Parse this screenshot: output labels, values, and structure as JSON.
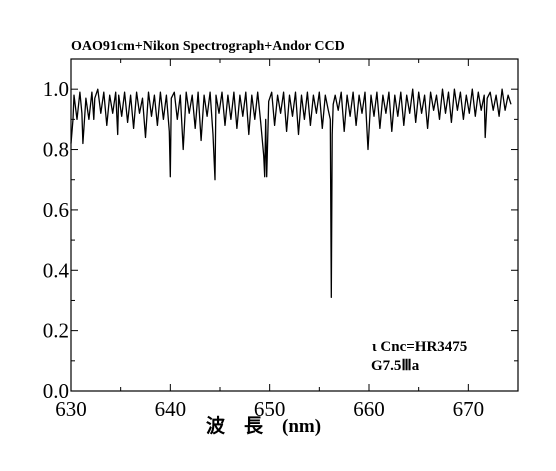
{
  "chart_data": {
    "type": "line",
    "title": "OAO91cm+Nikon Spectrograph+Andor CCD",
    "xlabel": "波　長　(nm)",
    "ylabel": "",
    "xlim": [
      630,
      675
    ],
    "ylim": [
      0.0,
      1.1
    ],
    "xticks": [
      "630",
      "640",
      "650",
      "660",
      "670"
    ],
    "yticks": [
      "0.0",
      "0.2",
      "0.4",
      "0.6",
      "0.8",
      "1.0"
    ],
    "grid": false,
    "legend": "none",
    "annotations": [
      "ι Cnc=HR3475",
      "G7.5Ⅲa"
    ],
    "series": [
      {
        "x": [
          630.0,
          630.2,
          630.3,
          630.6,
          630.9,
          631.1,
          631.2,
          631.5,
          631.8,
          632.1,
          632.3,
          632.4,
          632.7,
          633.0,
          633.3,
          633.6,
          633.9,
          634.2,
          634.5,
          634.7,
          634.8,
          635.1,
          635.4,
          635.7,
          636.0,
          636.3,
          636.6,
          636.9,
          637.2,
          637.5,
          637.8,
          638.1,
          638.4,
          638.7,
          639.0,
          639.3,
          639.6,
          639.9,
          640.0,
          640.1,
          640.4,
          640.7,
          641.0,
          641.3,
          641.6,
          641.9,
          642.2,
          642.5,
          642.8,
          643.1,
          643.4,
          643.7,
          644.0,
          644.3,
          644.5,
          644.6,
          644.9,
          645.2,
          645.5,
          645.8,
          646.1,
          646.4,
          646.7,
          647.0,
          647.3,
          647.6,
          647.9,
          648.2,
          648.5,
          648.8,
          649.1,
          649.4,
          649.5,
          649.6,
          649.7,
          649.9,
          650.2,
          650.5,
          650.8,
          651.1,
          651.4,
          651.7,
          652.0,
          652.3,
          652.6,
          652.9,
          653.2,
          653.5,
          653.8,
          654.1,
          654.4,
          654.7,
          655.0,
          655.3,
          655.6,
          655.9,
          656.1,
          656.2,
          656.3,
          656.4,
          656.6,
          656.9,
          657.2,
          657.5,
          657.8,
          658.1,
          658.4,
          658.7,
          659.0,
          659.3,
          659.6,
          659.9,
          660.2,
          660.5,
          660.8,
          661.1,
          661.4,
          661.7,
          662.0,
          662.3,
          662.6,
          662.9,
          663.2,
          663.5,
          663.8,
          664.1,
          664.4,
          664.7,
          665.0,
          665.3,
          665.6,
          665.9,
          666.2,
          666.5,
          666.8,
          667.1,
          667.4,
          667.7,
          668.0,
          668.3,
          668.6,
          668.9,
          669.2,
          669.5,
          669.8,
          670.1,
          670.4,
          670.7,
          671.0,
          671.3,
          671.6,
          671.7,
          671.9,
          672.2,
          672.5,
          672.8,
          673.1,
          673.4,
          673.7,
          674.0,
          674.3
        ],
        "y": [
          0.82,
          0.9,
          0.98,
          0.9,
          0.99,
          0.92,
          0.82,
          0.97,
          0.9,
          0.99,
          0.9,
          0.97,
          1.0,
          0.92,
          0.99,
          0.88,
          0.98,
          0.92,
          0.99,
          0.85,
          0.98,
          0.91,
          0.99,
          0.89,
          0.98,
          0.87,
          0.99,
          0.92,
          0.97,
          0.84,
          0.99,
          0.91,
          0.98,
          0.88,
          0.99,
          0.9,
          0.98,
          0.86,
          0.71,
          0.97,
          0.99,
          0.9,
          0.98,
          0.8,
          0.99,
          0.92,
          0.98,
          0.87,
          0.99,
          0.83,
          0.98,
          0.91,
          0.99,
          0.85,
          0.7,
          0.98,
          0.92,
          0.99,
          0.88,
          0.98,
          0.9,
          0.99,
          0.87,
          0.98,
          0.91,
          0.99,
          0.85,
          0.98,
          0.9,
          0.99,
          0.89,
          0.78,
          0.71,
          0.9,
          0.71,
          0.96,
          0.99,
          0.88,
          0.98,
          0.92,
          0.99,
          0.86,
          0.98,
          0.91,
          0.99,
          0.85,
          0.98,
          0.9,
          0.99,
          0.88,
          0.98,
          0.92,
          0.99,
          0.87,
          0.98,
          0.93,
          0.9,
          0.31,
          0.85,
          0.95,
          0.98,
          0.93,
          0.99,
          0.86,
          0.98,
          0.91,
          0.99,
          0.88,
          0.98,
          0.92,
          0.99,
          0.8,
          0.98,
          0.91,
          0.99,
          0.87,
          0.98,
          0.92,
          0.99,
          0.86,
          0.98,
          0.91,
          0.99,
          0.88,
          0.98,
          0.92,
          1.0,
          0.89,
          0.99,
          0.92,
          0.98,
          0.87,
          0.99,
          0.93,
          0.98,
          0.9,
          1.0,
          0.92,
          0.99,
          0.89,
          1.0,
          0.93,
          0.99,
          0.9,
          0.98,
          0.92,
          1.0,
          0.91,
          0.99,
          0.93,
          0.98,
          0.84,
          0.97,
          0.99,
          0.93,
          0.98,
          0.91,
          1.0,
          0.93,
          0.98,
          0.95
        ]
      }
    ]
  }
}
